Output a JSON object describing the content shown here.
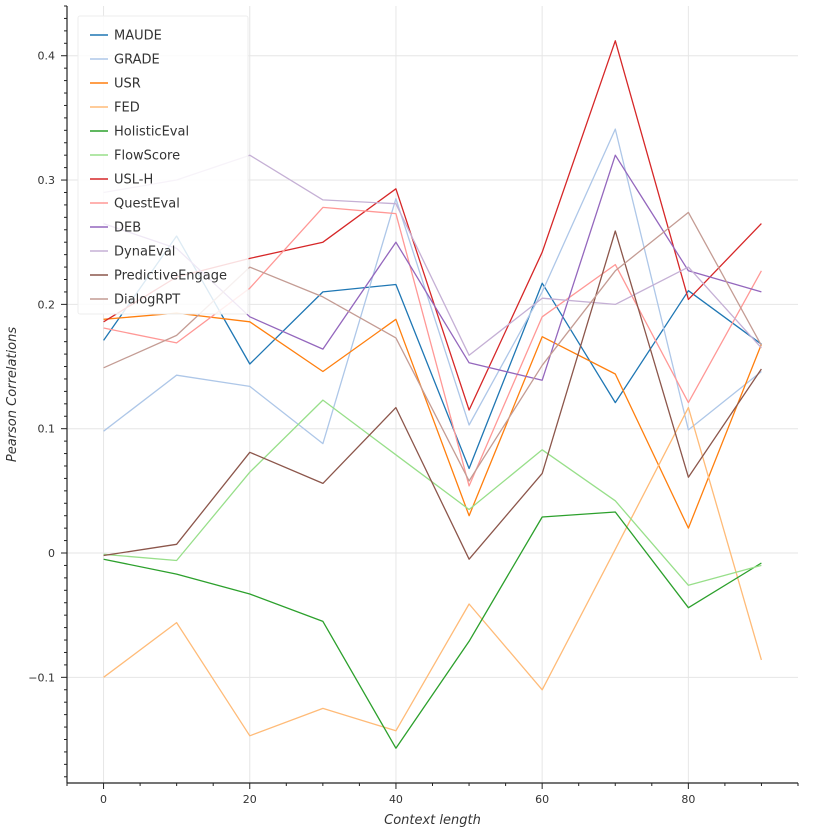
{
  "chart_data": {
    "type": "line",
    "title": "",
    "xlabel": "Context length",
    "ylabel": "Pearson Correlations",
    "x": [
      0,
      10,
      20,
      30,
      40,
      50,
      60,
      70,
      80,
      90
    ],
    "xlim": [
      -5,
      95
    ],
    "ylim": [
      -0.185,
      0.44
    ],
    "xticks": [
      0,
      20,
      40,
      60,
      80
    ],
    "xtick_labels": [
      "0",
      "20",
      "40",
      "60",
      "80"
    ],
    "yticks": [
      -0.1,
      0,
      0.1,
      0.2,
      0.3,
      0.4
    ],
    "ytick_labels": [
      "−0.1",
      "0",
      "0.1",
      "0.2",
      "0.3",
      "0.4"
    ],
    "grid": true,
    "legend_position": "top-left",
    "series": [
      {
        "name": "MAUDE",
        "color": "#1f77b4",
        "values": [
          0.171,
          0.255,
          0.152,
          0.21,
          0.216,
          0.068,
          0.217,
          0.121,
          0.211,
          0.168
        ]
      },
      {
        "name": "GRADE",
        "color": "#aec7e8",
        "values": [
          0.098,
          0.143,
          0.134,
          0.088,
          0.285,
          0.103,
          0.21,
          0.341,
          0.099,
          0.146
        ]
      },
      {
        "name": "USR",
        "color": "#ff7f0e",
        "values": [
          0.188,
          0.193,
          0.186,
          0.146,
          0.188,
          0.03,
          0.174,
          0.144,
          0.02,
          0.168
        ]
      },
      {
        "name": "FED",
        "color": "#ffbb78",
        "values": [
          -0.1,
          -0.056,
          -0.147,
          -0.125,
          -0.143,
          -0.041,
          -0.11,
          0.003,
          0.117,
          -0.086
        ]
      },
      {
        "name": "HolisticEval",
        "color": "#2ca02c",
        "values": [
          -0.005,
          -0.017,
          -0.033,
          -0.055,
          -0.157,
          -0.071,
          0.029,
          0.033,
          -0.044,
          -0.008
        ]
      },
      {
        "name": "FlowScore",
        "color": "#98df8a",
        "values": [
          -0.001,
          -0.006,
          0.065,
          0.123,
          0.079,
          0.035,
          0.083,
          0.042,
          -0.026,
          -0.01
        ]
      },
      {
        "name": "USL-H",
        "color": "#d62728",
        "values": [
          0.186,
          0.222,
          0.237,
          0.25,
          0.293,
          0.115,
          0.242,
          0.412,
          0.204,
          0.265
        ]
      },
      {
        "name": "QuestEval",
        "color": "#ff9896",
        "values": [
          0.181,
          0.169,
          0.213,
          0.278,
          0.273,
          0.054,
          0.19,
          0.232,
          0.121,
          0.227
        ]
      },
      {
        "name": "DEB",
        "color": "#9467bd",
        "values": [
          0.265,
          0.245,
          0.19,
          0.164,
          0.25,
          0.153,
          0.139,
          0.32,
          0.227,
          0.21
        ]
      },
      {
        "name": "DynaEval",
        "color": "#c5b0d5",
        "values": [
          0.29,
          0.3,
          0.32,
          0.284,
          0.281,
          0.159,
          0.205,
          0.2,
          0.23,
          0.165
        ]
      },
      {
        "name": "PredictiveEngage",
        "color": "#8c564b",
        "values": [
          -0.002,
          0.007,
          0.081,
          0.056,
          0.117,
          -0.005,
          0.064,
          0.259,
          0.061,
          0.148
        ]
      },
      {
        "name": "DialogRPT",
        "color": "#c49c94",
        "values": [
          0.149,
          0.175,
          0.23,
          0.206,
          0.173,
          0.058,
          0.151,
          0.227,
          0.274,
          0.167
        ]
      }
    ]
  }
}
